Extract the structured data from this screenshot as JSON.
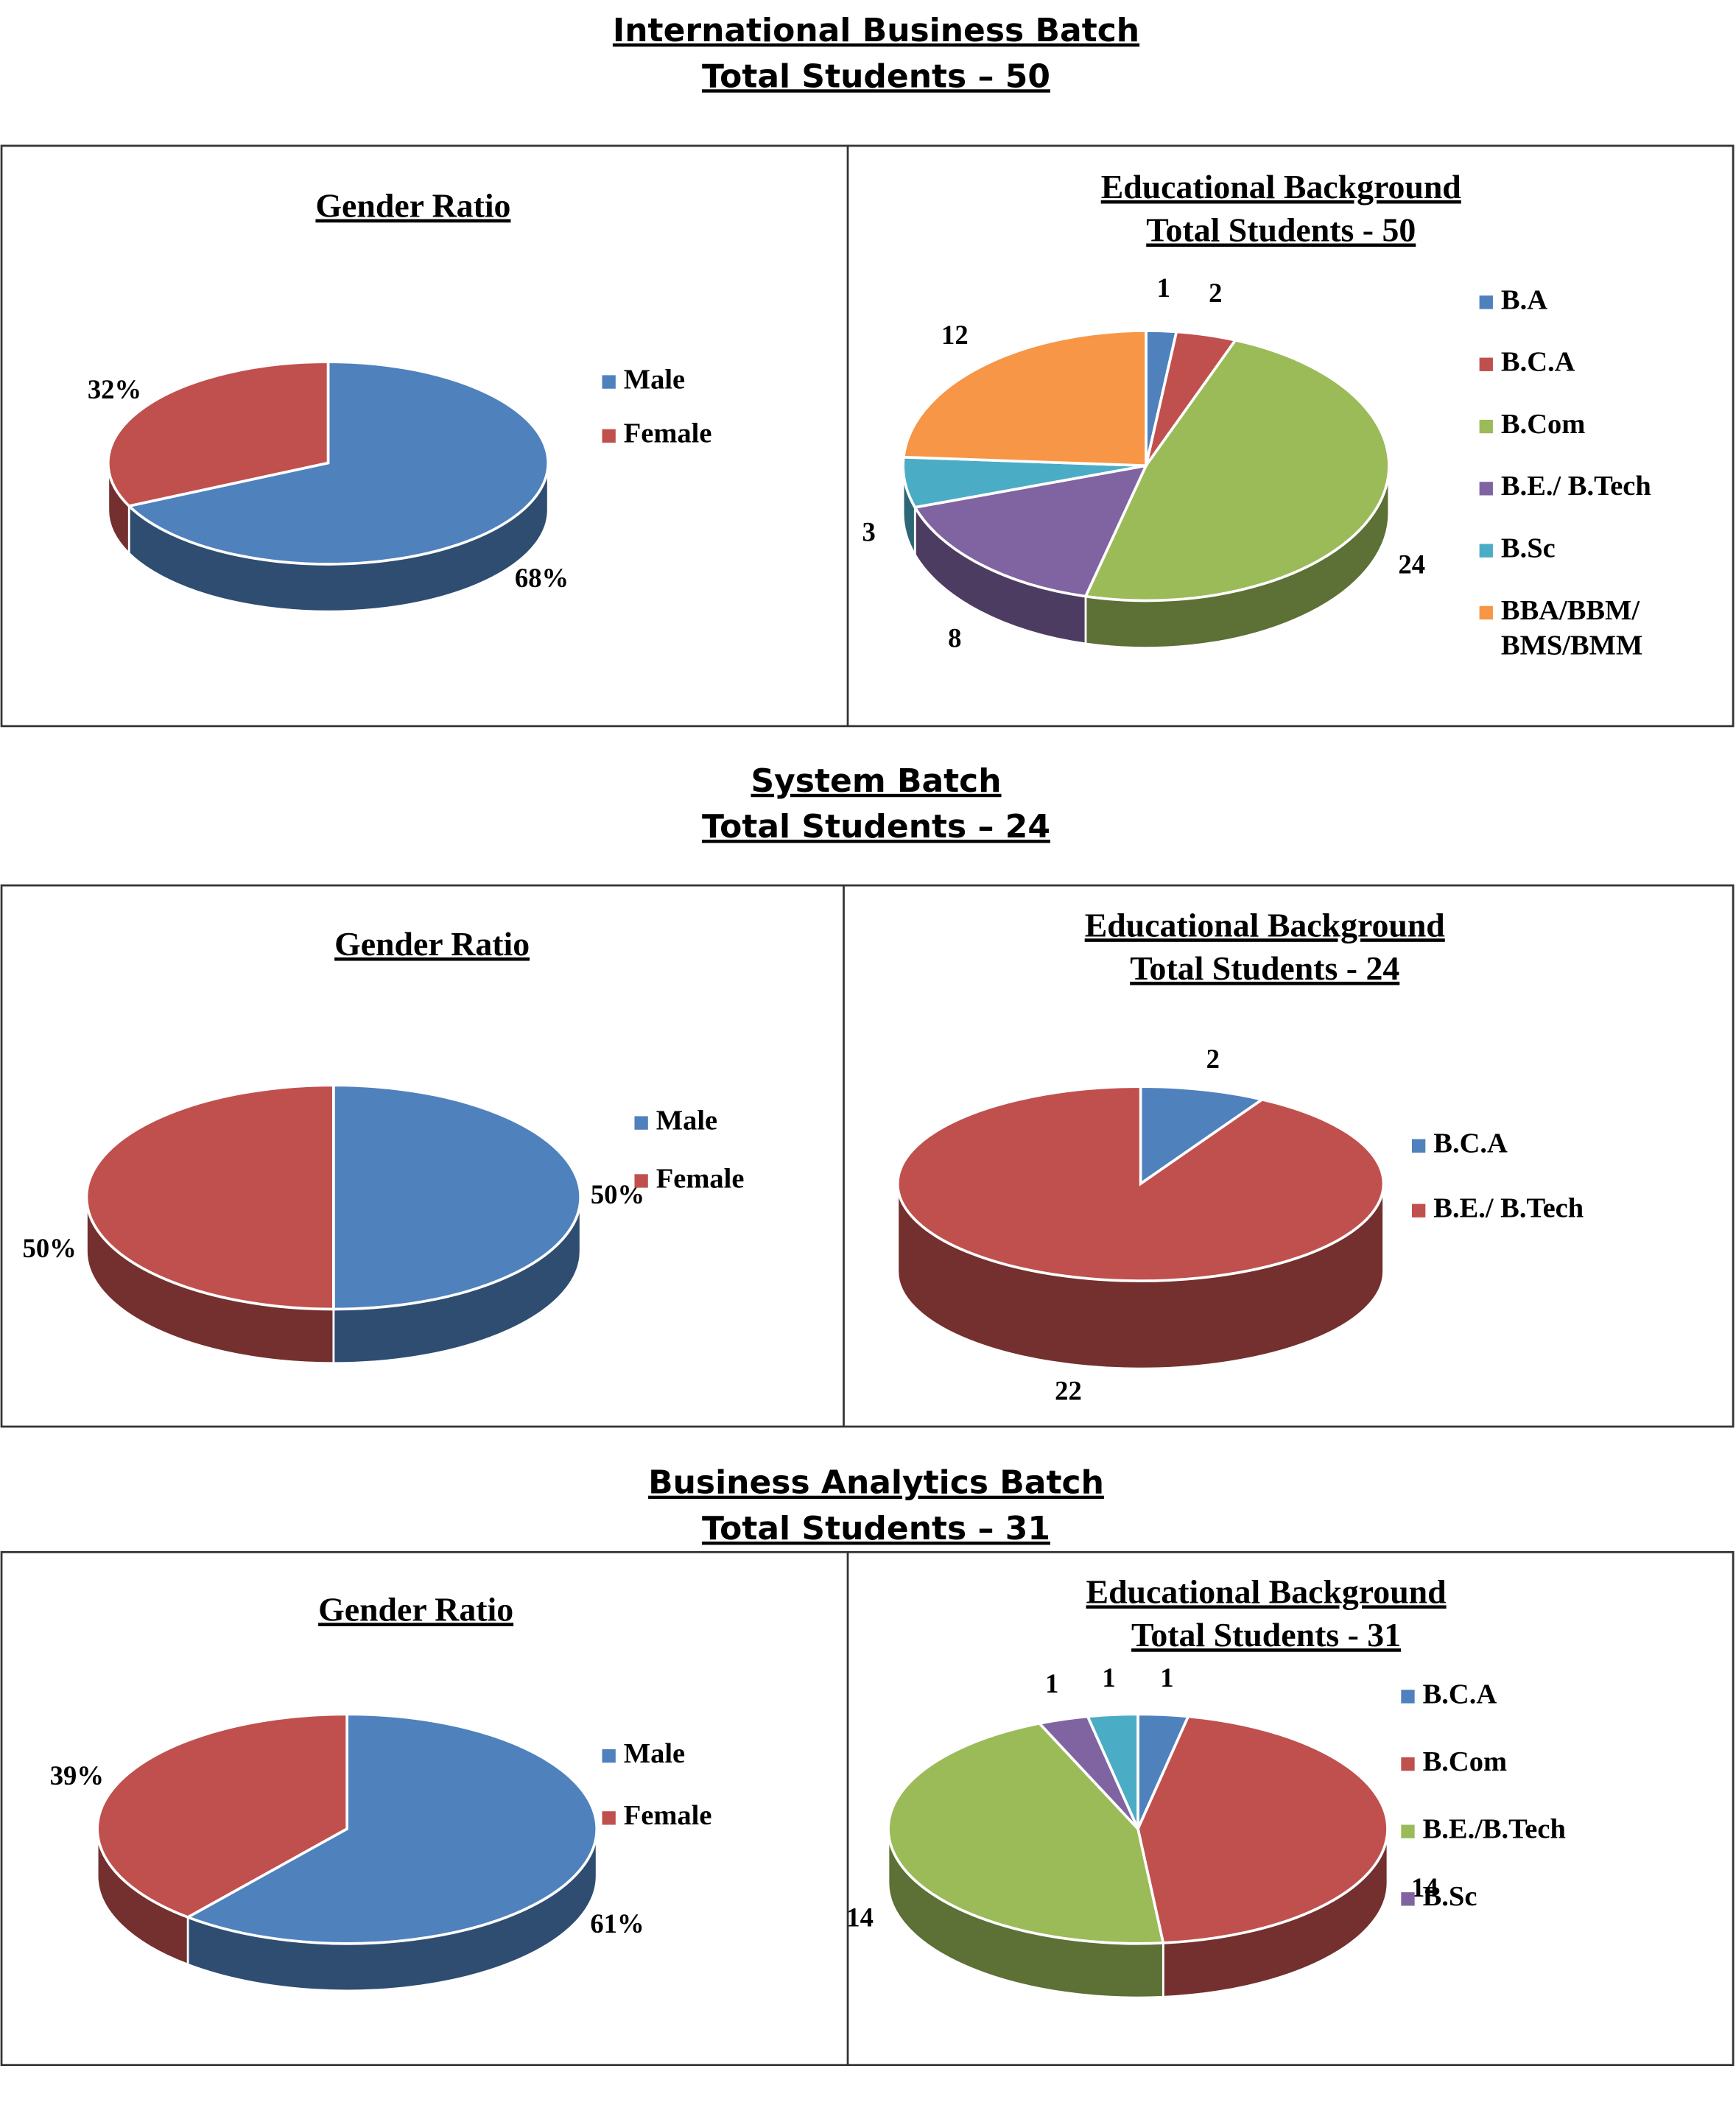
{
  "sections": [
    {
      "title": "International Business Batch",
      "subtitle": "Total Students – 50"
    },
    {
      "title": "System Batch",
      "subtitle": "Total Students – 24"
    },
    {
      "title": "Business Analytics Batch",
      "subtitle": "Total Students – 31"
    }
  ],
  "chart_data": [
    {
      "type": "pie",
      "title": "Gender Ratio",
      "categories": [
        "Male",
        "Female"
      ],
      "values": [
        68,
        32
      ],
      "value_labels": [
        "68%",
        "32%"
      ],
      "colors": [
        "#4f81bd",
        "#c0504d"
      ]
    },
    {
      "type": "pie",
      "title": "Educational Background",
      "subtitle": "Total Students - 50",
      "categories": [
        "B.A",
        "B.C.A",
        "B.Com",
        "B.E./ B.Tech",
        "B.Sc",
        "BBA/BBM/ BMS/BMM"
      ],
      "values": [
        1,
        2,
        24,
        8,
        3,
        12
      ],
      "colors": [
        "#4f81bd",
        "#c0504d",
        "#9bbb59",
        "#8064a2",
        "#4bacc6",
        "#f79646"
      ]
    },
    {
      "type": "pie",
      "title": "Gender Ratio",
      "categories": [
        "Male",
        "Female"
      ],
      "values": [
        50,
        50
      ],
      "value_labels": [
        "50%",
        "50%"
      ],
      "colors": [
        "#4f81bd",
        "#c0504d"
      ]
    },
    {
      "type": "pie",
      "title": "Educational Background",
      "subtitle": "Total Students - 24",
      "categories": [
        "B.C.A",
        "B.E./ B.Tech"
      ],
      "values": [
        2,
        22
      ],
      "colors": [
        "#4f81bd",
        "#c0504d"
      ]
    },
    {
      "type": "pie",
      "title": "Gender Ratio",
      "categories": [
        "Male",
        "Female"
      ],
      "values": [
        61,
        39
      ],
      "value_labels": [
        "61%",
        "39%"
      ],
      "colors": [
        "#4f81bd",
        "#c0504d"
      ]
    },
    {
      "type": "pie",
      "title": "Educational Background",
      "subtitle": "Total Students - 31",
      "categories": [
        "B.C.A",
        "B.Com",
        "B.E./B.Tech",
        "B.Sc",
        null
      ],
      "values": [
        1,
        14,
        14,
        1,
        1
      ],
      "colors": [
        "#4f81bd",
        "#c0504d",
        "#9bbb59",
        "#8064a2",
        "#4bacc6"
      ]
    }
  ]
}
